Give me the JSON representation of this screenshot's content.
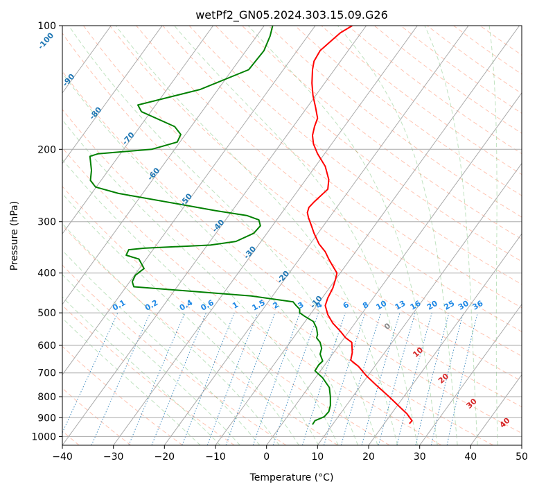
{
  "chart_data": {
    "type": "line",
    "title": "wetPf2_GN05.2024.303.15.09.G26",
    "xlabel": "Temperature (°C)",
    "ylabel": "Pressure (hPa)",
    "xlim": [
      -40,
      50
    ],
    "ylim": [
      1050,
      100
    ],
    "y_scale": "log",
    "grid": true,
    "x_ticks": [
      -40,
      -30,
      -20,
      -10,
      0,
      10,
      20,
      30,
      40,
      50
    ],
    "y_ticks": [
      1000,
      900,
      800,
      700,
      600,
      500,
      400,
      300,
      200,
      100
    ],
    "isotherm_labels": [
      {
        "text": "-100",
        "p": 110
      },
      {
        "text": "-90",
        "p": 137
      },
      {
        "text": "-80",
        "p": 165
      },
      {
        "text": "-70",
        "p": 190
      },
      {
        "text": "-60",
        "p": 232
      },
      {
        "text": "-50",
        "p": 268
      },
      {
        "text": "-40",
        "p": 310
      },
      {
        "text": "-30",
        "p": 360
      },
      {
        "text": "-20",
        "p": 413
      },
      {
        "text": "-10",
        "p": 475
      }
    ],
    "mixing_ratio_labels": [
      "0.1",
      "0.2",
      "0.4",
      "0.6",
      "1",
      "1.5",
      "2",
      "3",
      "4",
      "6",
      "8",
      "10",
      "13",
      "16",
      "20",
      "25",
      "30",
      "36"
    ],
    "moist_adiabat_labels": [
      {
        "text": "0",
        "t": 24,
        "p": 545,
        "color": "#888888"
      },
      {
        "text": "10",
        "t": 30,
        "p": 630,
        "color": "#d62728"
      },
      {
        "text": "20",
        "t": 35,
        "p": 730,
        "color": "#d62728"
      },
      {
        "text": "30",
        "t": 40.5,
        "p": 840,
        "color": "#d62728"
      },
      {
        "text": "40",
        "t": 47,
        "p": 935,
        "color": "#d62728"
      }
    ],
    "series": [
      {
        "color": "#ff0000",
        "x": [
          28,
          28.5,
          27.5,
          26,
          24,
          21.5,
          19.5,
          18,
          16.5,
          16.8,
          16.7,
          15.5,
          14.5,
          13,
          12,
          11.5,
          12,
          13,
          13.5,
          13.8,
          13,
          12.2,
          11.5,
          10.3,
          9.3,
          8.8,
          8.2,
          8,
          8.3,
          9.4,
          12,
          12.2,
          11.5,
          10,
          9.2,
          9,
          9.4,
          10,
          9.6,
          9.1,
          8.9,
          9,
          9.3,
          10.5,
          13,
          14.5,
          16.8
        ],
        "y": [
          930,
          915,
          880,
          845,
          800,
          750,
          710,
          675,
          652,
          625,
          590,
          575,
          555,
          530,
          505,
          480,
          460,
          435,
          415,
          400,
          385,
          370,
          355,
          340,
          320,
          307,
          293,
          285,
          277,
          268,
          250,
          237,
          220,
          205,
          194,
          185,
          176,
          168,
          158,
          148,
          138,
          128,
          122,
          115,
          108,
          104,
          100
        ]
      },
      {
        "color": "#008000",
        "x": [
          9,
          9.5,
          11.3,
          12.2,
          12.5,
          12.5,
          12.3,
          11,
          9.5,
          10.2,
          11,
          10.5,
          10.8,
          10.5,
          9.8,
          10,
          9.8,
          9.2,
          7.5,
          6.5,
          6.5,
          5.8,
          5.2,
          -3,
          -26,
          -26.3,
          -25.7,
          -24,
          -25,
          -27.5,
          -27,
          -24,
          -11,
          -6,
          -2.5,
          -1.2,
          -1.5,
          -3.8,
          -10,
          -17,
          -29,
          -33.5,
          -34.5,
          -34.3,
          -34.6,
          -33,
          -22.5,
          -17.5,
          -16.8,
          -18,
          -24.5,
          -25.2,
          -13,
          -3.5,
          -0.5,
          0.7,
          1.2
        ],
        "y": [
          935,
          915,
          895,
          870,
          840,
          800,
          760,
          720,
          692,
          670,
          655,
          630,
          610,
          590,
          575,
          565,
          545,
          525,
          510,
          500,
          490,
          480,
          470,
          455,
          432,
          420,
          405,
          390,
          370,
          362,
          351,
          348,
          342,
          335,
          320,
          307,
          297,
          290,
          282,
          272,
          256,
          247,
          238,
          225,
          208,
          205,
          200,
          192,
          184,
          176,
          162,
          156,
          143,
          128,
          115,
          106,
          100
        ]
      }
    ]
  }
}
